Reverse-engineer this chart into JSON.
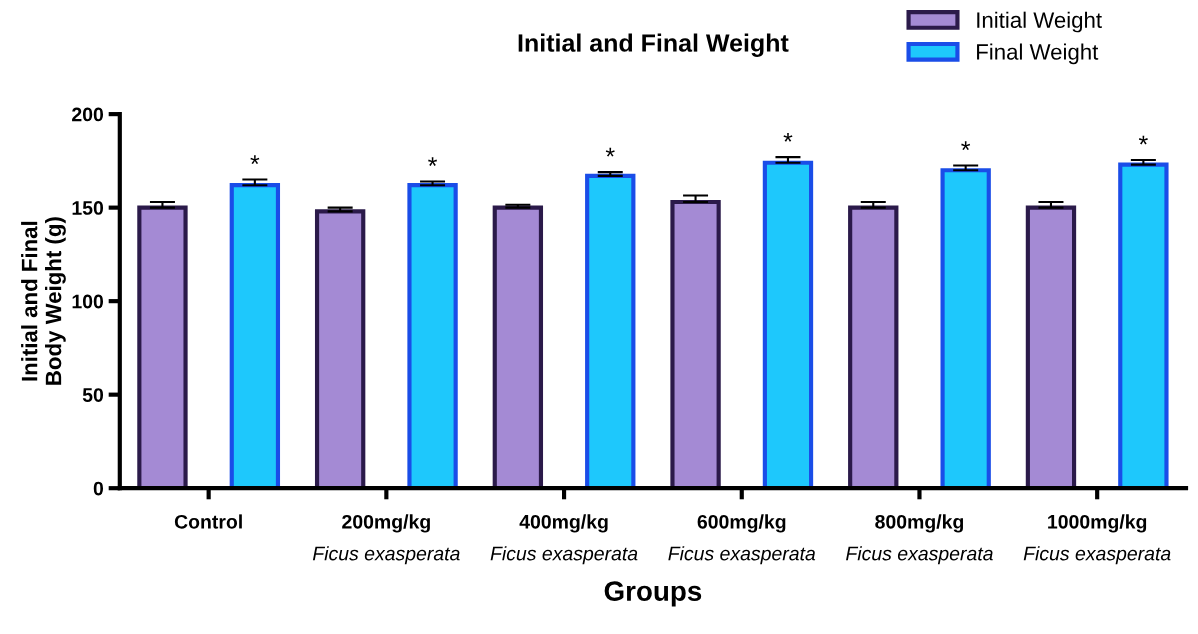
{
  "chart_data": {
    "type": "bar",
    "title": "Initial and Final Weight",
    "xlabel": "Groups",
    "ylabel": "Initial and Final\nBody Weight (g)",
    "categories": [
      "Control",
      "200mg/kg\nFicus exasperata",
      "400mg/kg\nFicus exasperata",
      "600mg/kg\nFicus exasperata",
      "800mg/kg\nFicus exasperata",
      "1000mg/kg\nFicus exasperata"
    ],
    "series": [
      {
        "name": "Initial Weight",
        "color": "#a48ad4",
        "values": [
          150,
          148,
          150,
          153,
          150,
          150
        ],
        "errors": [
          3,
          2,
          1.5,
          3.5,
          3,
          3
        ]
      },
      {
        "name": "Final Weight",
        "color": "#1ec8fc",
        "values": [
          162,
          162,
          167,
          174,
          170,
          173
        ],
        "errors": [
          3,
          2,
          2,
          3,
          2.5,
          2.5
        ]
      }
    ],
    "ylim": [
      0,
      200
    ],
    "yticks": [
      0,
      50,
      100,
      150,
      200
    ],
    "grid": false,
    "legend": "top right",
    "annotations": [
      "*",
      "*",
      "*",
      "*",
      "*",
      "*"
    ]
  }
}
